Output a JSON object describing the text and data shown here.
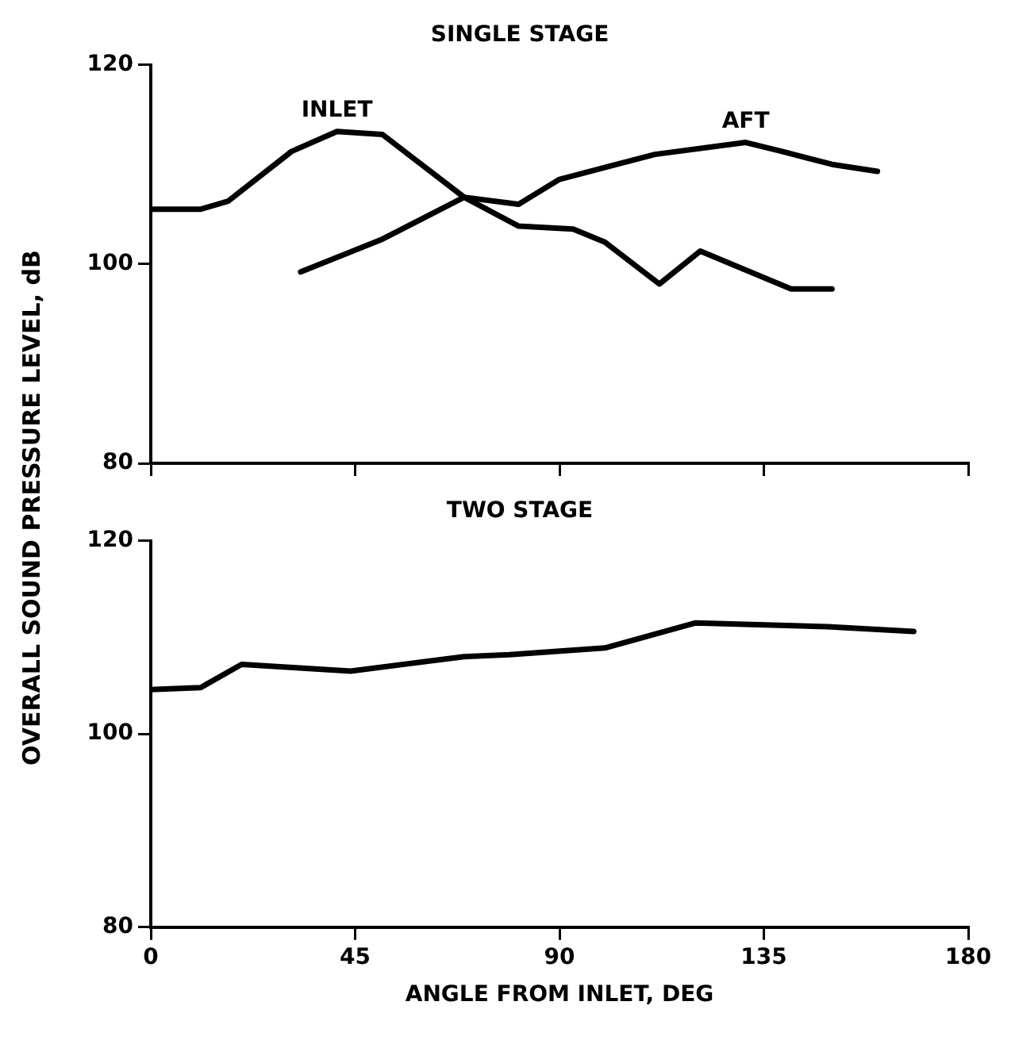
{
  "chart_data": [
    {
      "type": "line",
      "title": "SINGLE STAGE",
      "ylabel": "OVERALL SOUND PRESSURE LEVEL, dB",
      "xlim": [
        0,
        180
      ],
      "xticks": [
        0,
        45,
        90,
        135,
        180
      ],
      "ylim": [
        80,
        120
      ],
      "yticks": [
        80,
        100,
        120
      ],
      "tick_labels": "y",
      "grid": false,
      "legend": false,
      "marker": "none",
      "series": [
        {
          "name": "INLET",
          "color": "#000000",
          "x": [
            0,
            11,
            17,
            31,
            41,
            51,
            69,
            81,
            93,
            100,
            112,
            121,
            141,
            150
          ],
          "values": [
            105.5,
            105.5,
            106.3,
            111.3,
            113.3,
            113,
            106.7,
            103.8,
            103.5,
            102.2,
            98,
            101.3,
            97.5,
            97.5
          ]
        },
        {
          "name": "AFT",
          "color": "#000000",
          "x": [
            33,
            51,
            69,
            81,
            90,
            111,
            131,
            139,
            150,
            160
          ],
          "values": [
            99.2,
            102.5,
            106.7,
            106,
            108.5,
            111,
            112.2,
            111.3,
            110,
            109.3
          ]
        }
      ]
    },
    {
      "type": "line",
      "title": "TWO STAGE",
      "xlabel": "ANGLE FROM INLET, DEG",
      "xlim": [
        0,
        180
      ],
      "xticks": [
        0,
        45,
        90,
        135,
        180
      ],
      "ylim": [
        80,
        120
      ],
      "yticks": [
        80,
        100,
        120
      ],
      "grid": false,
      "legend": false,
      "marker": "none",
      "series": [
        {
          "color": "#000000",
          "x": [
            0,
            11,
            20,
            44,
            69,
            79,
            100,
            120,
            149,
            168
          ],
          "values": [
            104.6,
            104.8,
            107.2,
            106.5,
            108,
            108.2,
            108.9,
            111.5,
            111.1,
            110.6
          ]
        }
      ]
    }
  ]
}
